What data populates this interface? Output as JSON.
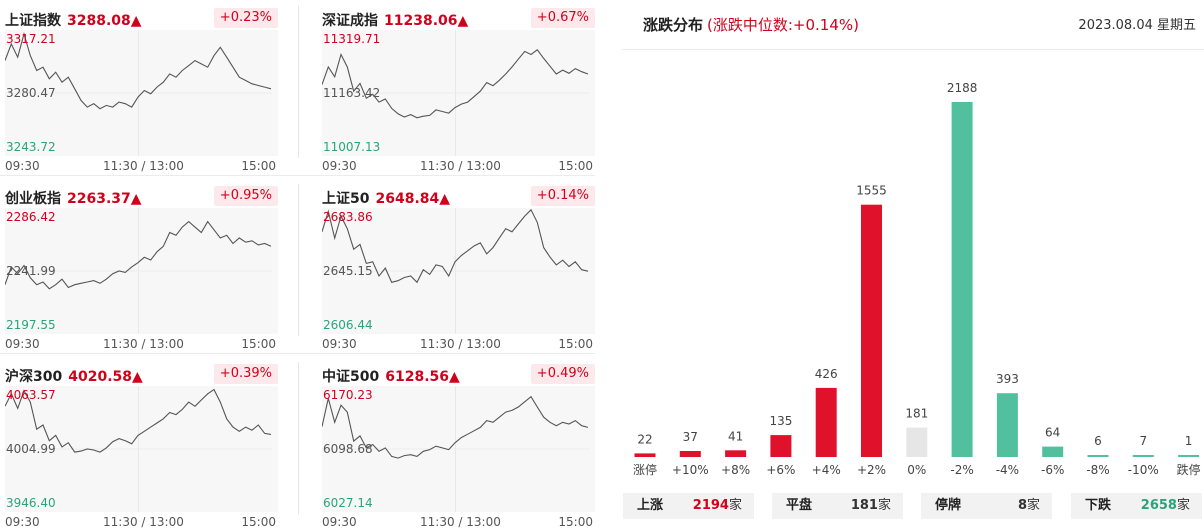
{
  "panels": [
    {
      "name": "上证指数",
      "value": "3288.08",
      "arrow": "▲",
      "change": "+0.23%",
      "y_high": "3317.21",
      "y_mid": "3280.47",
      "y_low": "3243.72",
      "series": [
        3300,
        3310,
        3302,
        3316,
        3303,
        3294,
        3296,
        3289,
        3293,
        3287,
        3290,
        3283,
        3276,
        3272,
        3274,
        3271,
        3273,
        3272,
        3275,
        3274,
        3272,
        3278,
        3282,
        3280,
        3284,
        3287,
        3292,
        3290,
        3294,
        3297,
        3300,
        3298,
        3296,
        3303,
        3308,
        3302,
        3296,
        3290,
        3288,
        3286,
        3285,
        3284,
        3283
      ]
    },
    {
      "name": "深证成指",
      "value": "11238.06",
      "arrow": "▲",
      "change": "+0.67%",
      "y_high": "11319.71",
      "y_mid": "11163.42",
      "y_low": "11007.13",
      "series": [
        11185,
        11230,
        11205,
        11262,
        11230,
        11168,
        11188,
        11150,
        11160,
        11140,
        11148,
        11124,
        11110,
        11102,
        11108,
        11100,
        11104,
        11106,
        11120,
        11116,
        11112,
        11126,
        11135,
        11140,
        11154,
        11168,
        11190,
        11182,
        11196,
        11212,
        11230,
        11250,
        11270,
        11262,
        11274,
        11252,
        11232,
        11212,
        11222,
        11214,
        11226,
        11218,
        11212
      ]
    },
    {
      "name": "创业板指",
      "value": "2263.37",
      "arrow": "▲",
      "change": "+0.95%",
      "y_high": "2286.42",
      "y_mid": "2241.99",
      "y_low": "2197.55",
      "series": [
        2232,
        2245,
        2240,
        2246,
        2237,
        2232,
        2234,
        2229,
        2232,
        2236,
        2230,
        2232,
        2233,
        2234,
        2235,
        2233,
        2236,
        2240,
        2242,
        2241,
        2245,
        2248,
        2252,
        2250,
        2256,
        2260,
        2270,
        2268,
        2274,
        2278,
        2274,
        2270,
        2278,
        2272,
        2266,
        2268,
        2262,
        2266,
        2263,
        2264,
        2261,
        2262,
        2260
      ]
    },
    {
      "name": "上证50",
      "value": "2648.84",
      "arrow": "▲",
      "change": "+0.14%",
      "y_high": "2683.86",
      "y_mid": "2645.15",
      "y_low": "2606.44",
      "series": [
        2670,
        2683,
        2666,
        2680,
        2672,
        2659,
        2662,
        2650,
        2651,
        2642,
        2647,
        2638,
        2639,
        2641,
        2642,
        2638,
        2646,
        2643,
        2649,
        2648,
        2642,
        2651,
        2655,
        2658,
        2661,
        2663,
        2656,
        2660,
        2666,
        2672,
        2670,
        2675,
        2680,
        2684,
        2676,
        2660,
        2654,
        2649,
        2652,
        2648,
        2651,
        2646,
        2645
      ]
    },
    {
      "name": "沪深300",
      "value": "4020.58",
      "arrow": "▲",
      "change": "+0.39%",
      "y_high": "4063.57",
      "y_mid": "4004.99",
      "y_low": "3946.40",
      "series": [
        4046,
        4058,
        4044,
        4061,
        4050,
        4024,
        4028,
        4013,
        4018,
        4007,
        4011,
        4002,
        4003,
        4005,
        4004,
        4002,
        4006,
        4012,
        4015,
        4013,
        4010,
        4018,
        4022,
        4026,
        4030,
        4034,
        4040,
        4038,
        4043,
        4050,
        4046,
        4052,
        4058,
        4062,
        4050,
        4034,
        4026,
        4022,
        4026,
        4023,
        4028,
        4020,
        4019
      ]
    },
    {
      "name": "中证500",
      "value": "6128.56",
      "arrow": "▲",
      "change": "+0.49%",
      "y_high": "6170.23",
      "y_mid": "6098.68",
      "y_low": "6027.14",
      "series": [
        6125,
        6158,
        6130,
        6150,
        6142,
        6108,
        6114,
        6100,
        6104,
        6096,
        6100,
        6090,
        6088,
        6091,
        6092,
        6090,
        6096,
        6098,
        6102,
        6100,
        6098,
        6106,
        6112,
        6116,
        6120,
        6124,
        6132,
        6130,
        6136,
        6142,
        6144,
        6148,
        6154,
        6160,
        6148,
        6136,
        6130,
        6126,
        6130,
        6128,
        6132,
        6126,
        6124
      ]
    }
  ],
  "x_axis": {
    "start": "09:30",
    "mid": "11:30 / 13:00",
    "end": "15:00"
  },
  "distribution": {
    "title": "涨跌分布",
    "subtitle": "(涨跌中位数:+0.14%)",
    "date": "2023.08.04 星期五",
    "colors": {
      "up": "#e0112b",
      "flat": "#e6e6e6",
      "down": "#52c09e"
    }
  },
  "chart_data": {
    "type": "bar",
    "categories": [
      "涨停",
      "+10%",
      "+8%",
      "+6%",
      "+4%",
      "+2%",
      "0%",
      "-2%",
      "-4%",
      "-6%",
      "-8%",
      "-10%",
      "跌停"
    ],
    "values": [
      22,
      37,
      41,
      135,
      426,
      1555,
      181,
      2188,
      393,
      64,
      6,
      7,
      1
    ],
    "kinds": [
      "up",
      "up",
      "up",
      "up",
      "up",
      "up",
      "flat",
      "down",
      "down",
      "down",
      "down",
      "down",
      "down"
    ],
    "title": "涨跌分布"
  },
  "summary": [
    {
      "label": "上涨",
      "value": "2194",
      "unit": "家",
      "color": "#d0021b"
    },
    {
      "label": "平盘",
      "value": "181",
      "unit": "家",
      "color": "#333333"
    },
    {
      "label": "停牌",
      "value": "8",
      "unit": "家",
      "color": "#333333"
    },
    {
      "label": "下跌",
      "value": "2658",
      "unit": "家",
      "color": "#2aa57a"
    }
  ]
}
